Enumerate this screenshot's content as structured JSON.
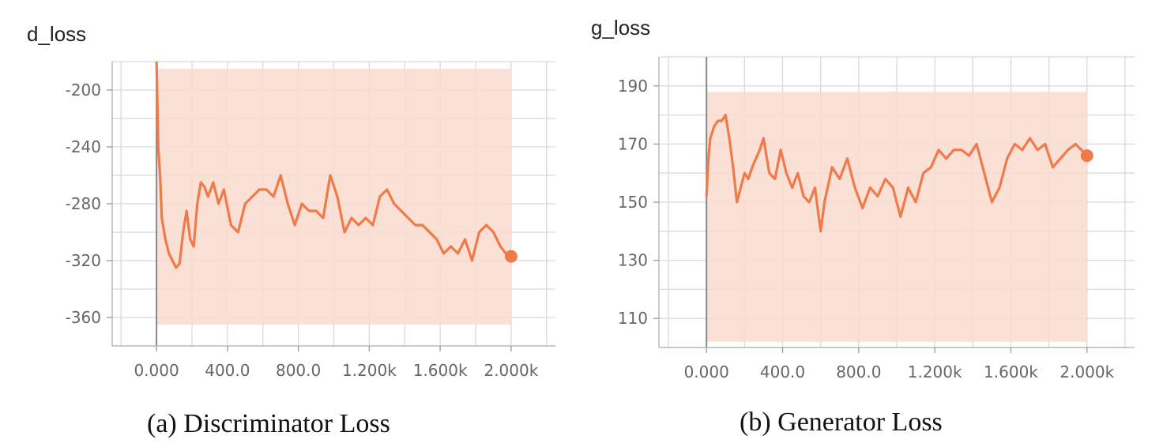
{
  "chart_data": [
    {
      "type": "line",
      "title": "d_loss",
      "caption": "(a) Discriminator Loss",
      "xlabel": "",
      "ylabel": "",
      "xlim": [
        -250,
        2250
      ],
      "ylim": [
        -380,
        -180
      ],
      "x_ticks": [
        0,
        400,
        800,
        1200,
        1600,
        2000
      ],
      "x_tick_labels": [
        "0.000",
        "400.0",
        "800.0",
        "1.200k",
        "1.600k",
        "2.000k"
      ],
      "y_ticks": [
        -200,
        -240,
        -280,
        -320,
        -360
      ],
      "y_tick_labels": [
        "-200",
        "-240",
        "-280",
        "-320",
        "-360"
      ],
      "grid": true,
      "colors": {
        "smoothed": "#f07a49",
        "raw_band": "#fadbcf",
        "grid": "#d9d9d9",
        "zero_line": "#888888"
      },
      "band": {
        "x": [
          0,
          2000
        ],
        "upper": -185,
        "lower": -365
      },
      "series": [
        {
          "x": [
            0,
            10,
            20,
            30,
            50,
            70,
            90,
            110,
            130,
            150,
            170,
            190,
            210,
            230,
            250,
            270,
            290,
            320,
            350,
            380,
            420,
            460,
            500,
            540,
            580,
            620,
            660,
            700,
            740,
            780,
            820,
            860,
            900,
            940,
            980,
            1020,
            1060,
            1100,
            1140,
            1180,
            1220,
            1260,
            1300,
            1340,
            1380,
            1420,
            1460,
            1500,
            1540,
            1580,
            1620,
            1660,
            1700,
            1740,
            1780,
            1820,
            1860,
            1900,
            1940,
            1970,
            2000
          ],
          "values": [
            -180,
            -240,
            -260,
            -290,
            -305,
            -315,
            -320,
            -325,
            -322,
            -300,
            -285,
            -305,
            -310,
            -280,
            -265,
            -268,
            -275,
            -265,
            -280,
            -270,
            -295,
            -300,
            -280,
            -275,
            -270,
            -270,
            -275,
            -260,
            -280,
            -295,
            -280,
            -285,
            -285,
            -290,
            -260,
            -275,
            -300,
            -290,
            -295,
            -290,
            -295,
            -275,
            -270,
            -280,
            -285,
            -290,
            -295,
            -295,
            -300,
            -305,
            -315,
            -310,
            -315,
            -305,
            -320,
            -300,
            -295,
            -300,
            -310,
            -315,
            -317
          ]
        }
      ]
    },
    {
      "type": "line",
      "title": "g_loss",
      "caption": "(b) Generator Loss",
      "xlabel": "",
      "ylabel": "",
      "xlim": [
        -250,
        2250
      ],
      "ylim": [
        100,
        200
      ],
      "x_ticks": [
        0,
        400,
        800,
        1200,
        1600,
        2000
      ],
      "x_tick_labels": [
        "0.000",
        "400.0",
        "800.0",
        "1.200k",
        "1.600k",
        "2.000k"
      ],
      "y_ticks": [
        190,
        170,
        150,
        130,
        110
      ],
      "y_tick_labels": [
        "190",
        "170",
        "150",
        "130",
        "110"
      ],
      "grid": true,
      "colors": {
        "smoothed": "#f07a49",
        "raw_band": "#fadbcf",
        "grid": "#d9d9d9",
        "zero_line": "#888888"
      },
      "band": {
        "x": [
          0,
          2000
        ],
        "upper": 188,
        "lower": 102
      },
      "series": [
        {
          "x": [
            0,
            10,
            20,
            40,
            60,
            80,
            100,
            120,
            140,
            160,
            180,
            200,
            220,
            240,
            260,
            280,
            300,
            330,
            360,
            390,
            420,
            450,
            480,
            510,
            540,
            570,
            600,
            620,
            660,
            700,
            740,
            780,
            820,
            860,
            900,
            940,
            980,
            1020,
            1060,
            1100,
            1140,
            1180,
            1220,
            1260,
            1300,
            1340,
            1380,
            1420,
            1460,
            1500,
            1540,
            1580,
            1620,
            1660,
            1700,
            1740,
            1780,
            1820,
            1860,
            1900,
            1940,
            1970,
            2000
          ],
          "values": [
            152,
            165,
            172,
            176,
            178,
            178,
            180,
            172,
            162,
            150,
            155,
            160,
            158,
            162,
            165,
            168,
            172,
            160,
            158,
            168,
            160,
            155,
            160,
            152,
            150,
            155,
            140,
            150,
            162,
            158,
            165,
            155,
            148,
            155,
            152,
            158,
            155,
            145,
            155,
            150,
            160,
            162,
            168,
            165,
            168,
            168,
            166,
            170,
            160,
            150,
            155,
            165,
            170,
            168,
            172,
            168,
            170,
            162,
            165,
            168,
            170,
            168,
            166
          ]
        }
      ]
    }
  ]
}
